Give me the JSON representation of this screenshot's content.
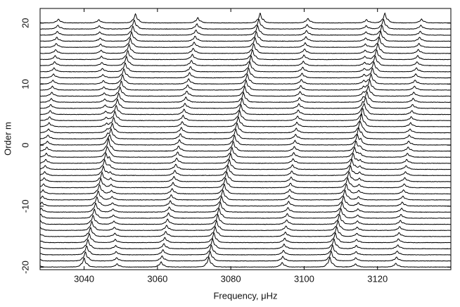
{
  "chart_data": {
    "type": "stacked-spectra",
    "xlabel": "Frequency, μHz",
    "ylabel": "Order m",
    "xlim": [
      3028,
      3140
    ],
    "ylim": [
      -20.4,
      22.4
    ],
    "xticks": [
      3040,
      3060,
      3080,
      3100,
      3120
    ],
    "yticks": [
      -20,
      -10,
      0,
      10,
      20
    ],
    "orders": [
      -20,
      -19,
      -18,
      -17,
      -16,
      -15,
      -14,
      -13,
      -12,
      -11,
      -10,
      -9,
      -8,
      -7,
      -6,
      -5,
      -4,
      -3,
      -2,
      -1,
      0,
      1,
      2,
      3,
      4,
      5,
      6,
      7,
      8,
      9,
      10,
      11,
      12,
      13,
      14,
      15,
      16,
      17,
      18,
      19,
      20
    ],
    "ridges": [
      {
        "x": [
          3040,
          3054
        ],
        "height": 1.4
      },
      {
        "x": [
          3074,
          3088
        ],
        "height": 1.5
      },
      {
        "x": [
          3107,
          3122
        ],
        "height": 1.5
      },
      {
        "x": [
          3061,
          3071
        ],
        "height": 0.8
      },
      {
        "x": [
          3094,
          3101
        ],
        "height": 0.7
      },
      {
        "x": [
          3027,
          3033
        ],
        "height": 0.6
      },
      {
        "x": [
          3125,
          3132
        ],
        "height": 0.6
      },
      {
        "x": [
          3049,
          3044
        ],
        "height": 0.5
      },
      {
        "x": [
          3114,
          3117
        ],
        "height": 0.5
      }
    ]
  }
}
